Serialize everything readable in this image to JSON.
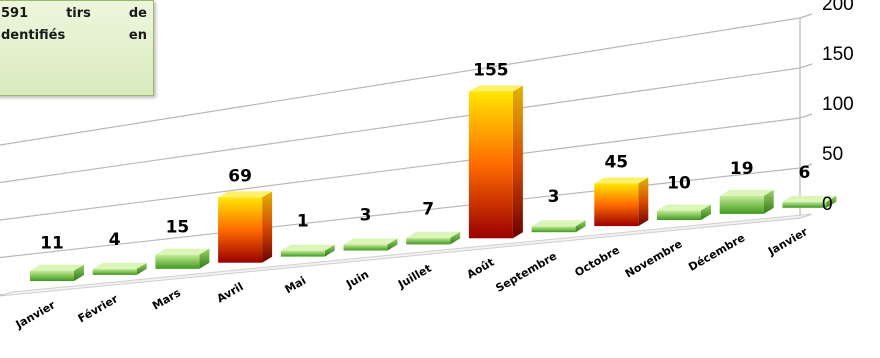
{
  "info_box": {
    "lines": [
      "591 tirs de",
      "dentifiés en"
    ]
  },
  "chart_data": {
    "type": "bar",
    "categories": [
      "Janvier",
      "Février",
      "Mars",
      "Avril",
      "Mai",
      "Juin",
      "Juillet",
      "Août",
      "Septembre",
      "Octobre",
      "Novembre",
      "Décembre",
      "Janvier"
    ],
    "values": [
      11,
      4,
      15,
      69,
      1,
      3,
      7,
      155,
      3,
      45,
      10,
      19,
      6
    ],
    "data_labels": [
      "11",
      "4",
      "15",
      "69",
      "1",
      "3",
      "7",
      "155",
      "3",
      "45",
      "10",
      "19",
      "6"
    ],
    "highlighted": [
      false,
      false,
      false,
      true,
      false,
      false,
      false,
      true,
      false,
      true,
      false,
      false,
      false
    ],
    "ylim": [
      0,
      200
    ],
    "yticks": [
      "0",
      "50",
      "100",
      "150",
      "200"
    ],
    "grid": true,
    "colors": {
      "normal_top": "#c8ec9a",
      "normal_bottom": "#3e9a1e",
      "highlight_top": "#ffe600",
      "highlight_mid": "#ff6a00",
      "highlight_bottom": "#9a0000"
    }
  }
}
